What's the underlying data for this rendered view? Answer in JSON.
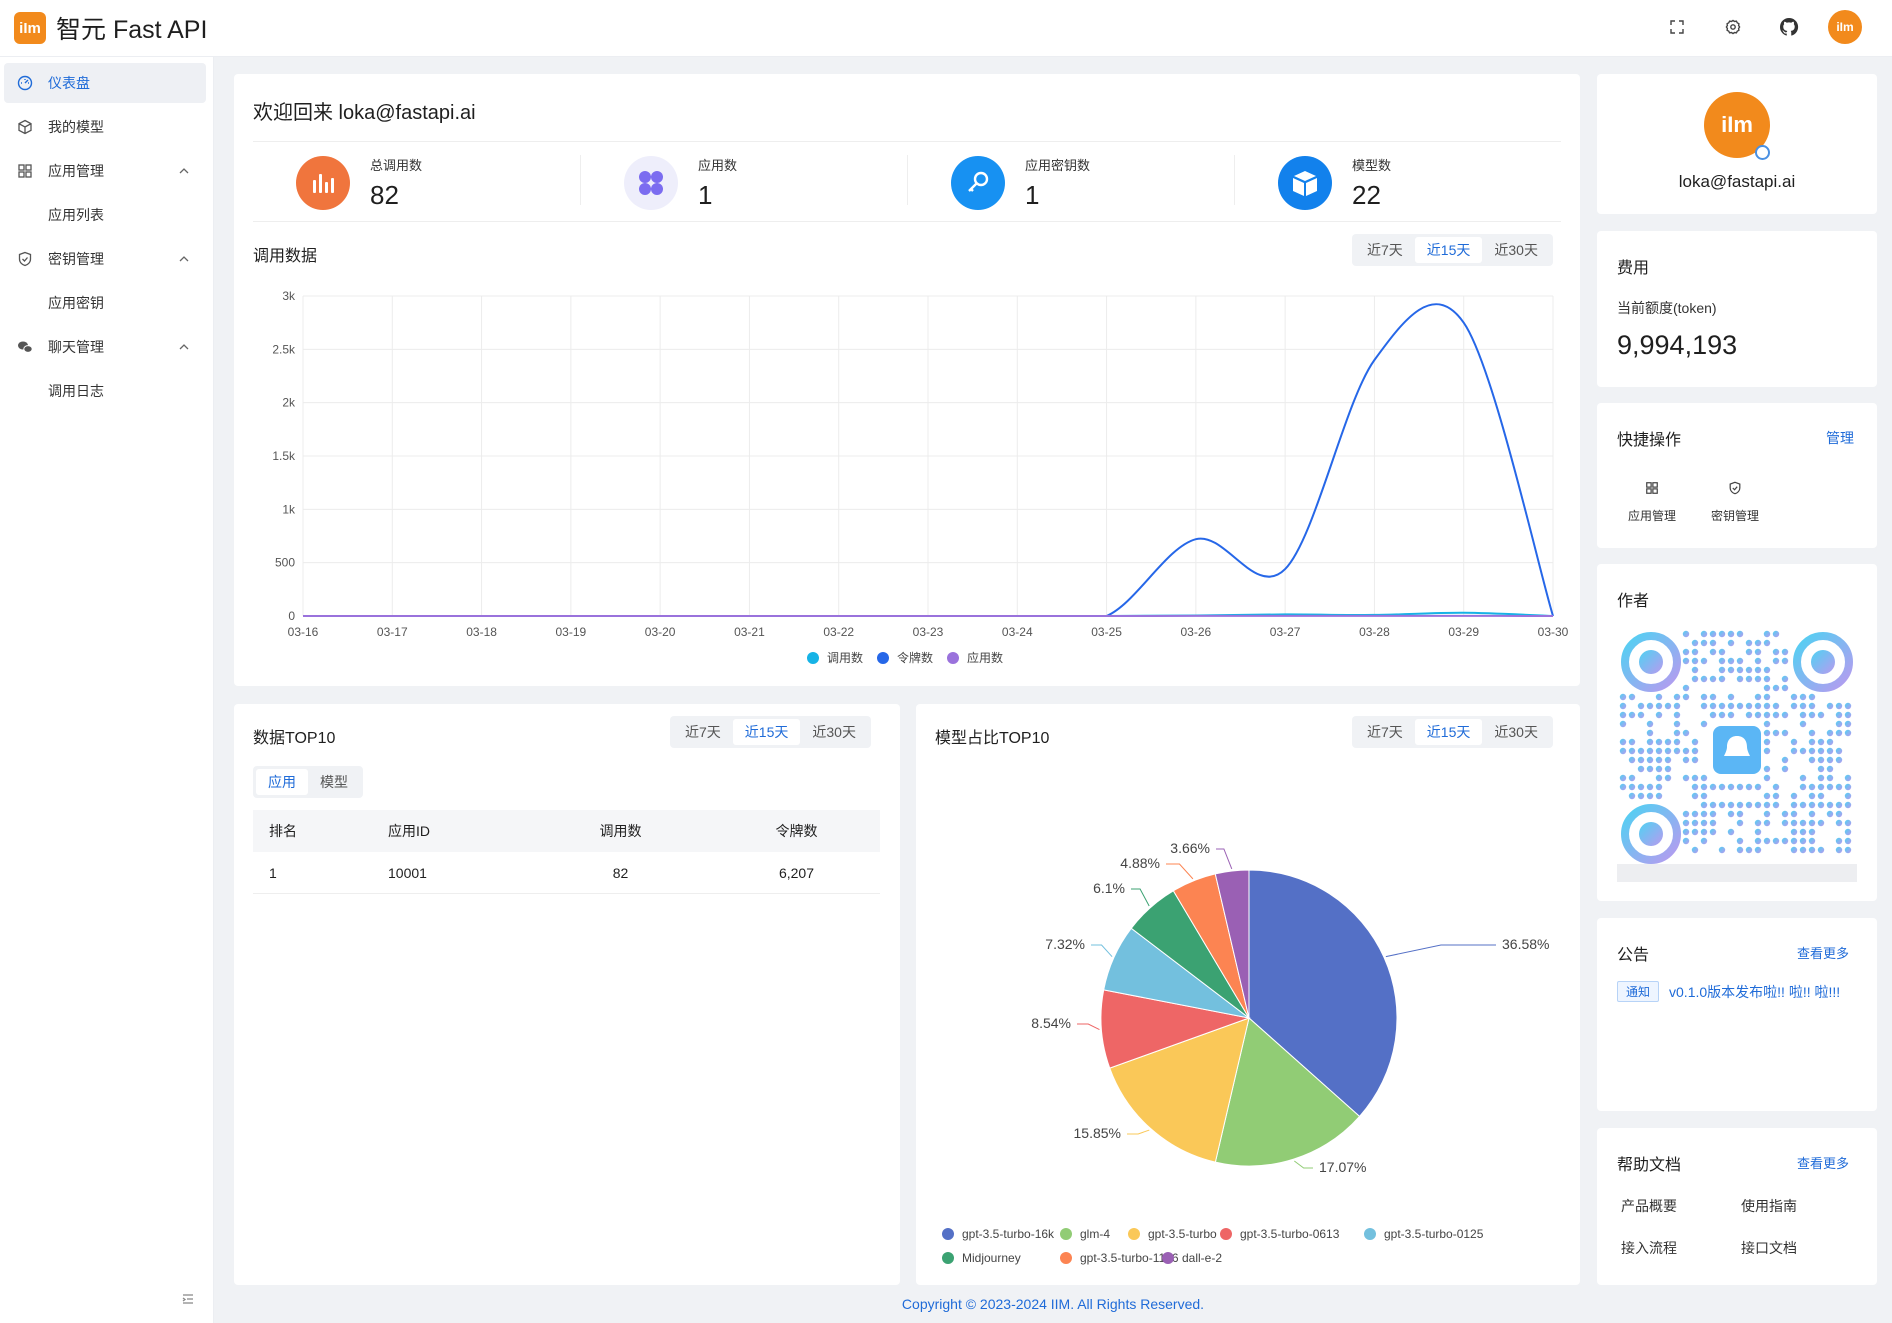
{
  "app": {
    "logo_text": "iIm",
    "title": "智元 Fast API",
    "avatar_text": "iIm"
  },
  "header": {
    "icons": [
      "fullscreen-icon",
      "settings-icon",
      "github-icon"
    ]
  },
  "sidebar": {
    "items": [
      {
        "label": "仪表盘",
        "icon": "dashboard-icon",
        "active": true
      },
      {
        "label": "我的模型",
        "icon": "cube-icon"
      },
      {
        "label": "应用管理",
        "icon": "grid-icon",
        "expanded": true,
        "children": [
          "应用列表"
        ]
      },
      {
        "label": "密钥管理",
        "icon": "shield-icon",
        "expanded": true,
        "children": [
          "应用密钥"
        ]
      },
      {
        "label": "聊天管理",
        "icon": "chat-icon",
        "expanded": true,
        "children": [
          "调用日志"
        ]
      }
    ]
  },
  "welcome": {
    "title": "欢迎回来 loka@fastapi.ai"
  },
  "stats": [
    {
      "label": "总调用数",
      "value": "82",
      "icon": "bar-chart-icon",
      "color": "#f0753d"
    },
    {
      "label": "应用数",
      "value": "1",
      "icon": "clover-icon",
      "color": "#7b6cf0"
    },
    {
      "label": "应用密钥数",
      "value": "1",
      "icon": "key-icon",
      "color": "#1791f2"
    },
    {
      "label": "模型数",
      "value": "22",
      "icon": "box-icon",
      "color": "#1281ec"
    }
  ],
  "ranges": [
    "近7天",
    "近15天",
    "近30天"
  ],
  "active_range": "近15天",
  "usage": {
    "title": "调用数据"
  },
  "top10": {
    "title": "数据TOP10",
    "tabs": [
      "应用",
      "模型"
    ],
    "active_tab": "应用",
    "columns": [
      "排名",
      "应用ID",
      "调用数",
      "令牌数"
    ],
    "rows": [
      [
        "1",
        "10001",
        "82",
        "6,207"
      ]
    ]
  },
  "model_top10": {
    "title": "模型占比TOP10"
  },
  "profile": {
    "avatar_text": "iIm",
    "email": "loka@fastapi.ai"
  },
  "fee": {
    "title": "费用",
    "label": "当前额度(token)",
    "value": "9,994,193"
  },
  "quick": {
    "title": "快捷操作",
    "manage": "管理",
    "items": [
      {
        "label": "应用管理",
        "icon": "grid-icon"
      },
      {
        "label": "密钥管理",
        "icon": "shield-icon"
      }
    ]
  },
  "author": {
    "title": "作者"
  },
  "notice": {
    "title": "公告",
    "more": "查看更多",
    "tag": "通知",
    "text": "v0.1.0版本发布啦!! 啦!! 啦!!!"
  },
  "help": {
    "title": "帮助文档",
    "more": "查看更多",
    "links": [
      "产品概要",
      "使用指南",
      "接入流程",
      "接口文档"
    ]
  },
  "footer": {
    "text": "Copyright © 2023-2024 IIM. All Rights Reserved."
  },
  "chart_data": [
    {
      "type": "line",
      "title": "调用数据",
      "x": [
        "03-16",
        "03-17",
        "03-18",
        "03-19",
        "03-20",
        "03-21",
        "03-22",
        "03-23",
        "03-24",
        "03-25",
        "03-26",
        "03-27",
        "03-28",
        "03-29",
        "03-30"
      ],
      "ylim": [
        0,
        3000
      ],
      "yticks": [
        0,
        500,
        1000,
        1500,
        2000,
        2500,
        3000
      ],
      "ytick_labels": [
        "0",
        "500",
        "1k",
        "1.5k",
        "2k",
        "2.5k",
        "3k"
      ],
      "series": [
        {
          "name": "调用数",
          "color": "#16b3e6",
          "values": [
            0,
            0,
            0,
            0,
            0,
            0,
            0,
            0,
            0,
            0,
            5,
            15,
            10,
            30,
            0
          ]
        },
        {
          "name": "令牌数",
          "color": "#2667e8",
          "values": [
            0,
            0,
            0,
            0,
            0,
            0,
            0,
            0,
            0,
            0,
            720,
            440,
            2400,
            2750,
            0
          ]
        },
        {
          "name": "应用数",
          "color": "#9a72dc",
          "values": [
            0,
            0,
            0,
            0,
            0,
            0,
            0,
            0,
            0,
            0,
            1,
            1,
            1,
            1,
            0
          ]
        }
      ]
    },
    {
      "type": "pie",
      "title": "模型占比TOP10",
      "categories": [
        "gpt-3.5-turbo-16k",
        "glm-4",
        "gpt-3.5-turbo",
        "gpt-3.5-turbo-0613",
        "gpt-3.5-turbo-0125",
        "Midjourney",
        "gpt-3.5-turbo-1106",
        "dall-e-2"
      ],
      "values": [
        36.58,
        17.07,
        15.85,
        8.54,
        7.32,
        6.1,
        4.88,
        3.66
      ],
      "labels": [
        "36.58%",
        "17.07%",
        "15.85%",
        "8.54%",
        "7.32%",
        "6.1%",
        "4.88%",
        "3.66%"
      ],
      "colors": [
        "#5470c6",
        "#91cc75",
        "#fac858",
        "#ee6666",
        "#73c0de",
        "#3ba272",
        "#fc8452",
        "#9a60b4"
      ]
    }
  ]
}
